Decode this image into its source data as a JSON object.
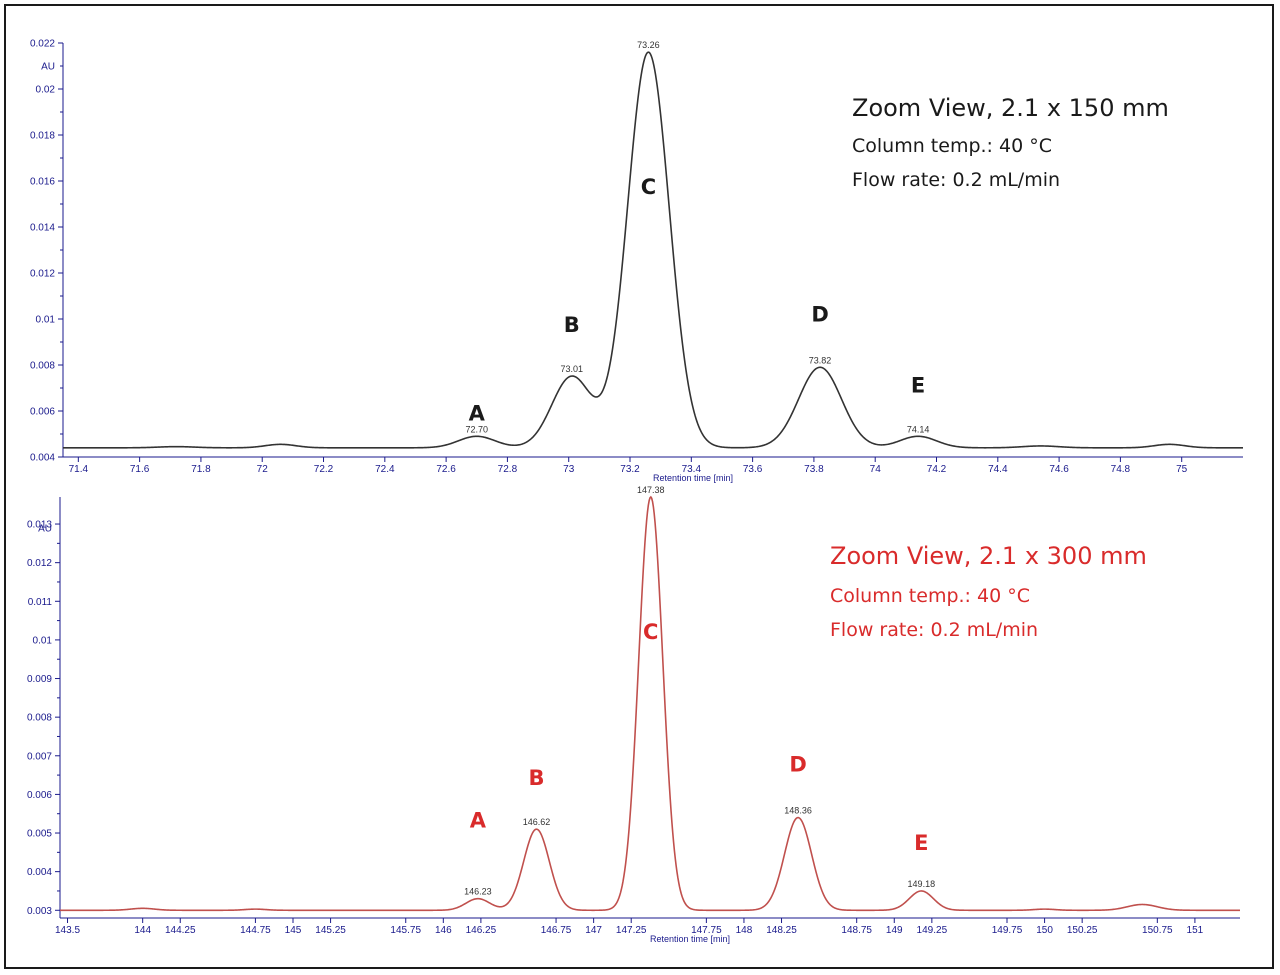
{
  "chart_data": [
    {
      "type": "line",
      "color": "#333333",
      "unit": "AU",
      "xlabel": "Retention time [min]",
      "xlim": [
        71.35,
        75.2
      ],
      "ylim": [
        0.004,
        0.022
      ],
      "baseline": 0.0044,
      "x_ticks": [
        71.4,
        71.6,
        71.8,
        72,
        72.2,
        72.4,
        72.6,
        72.8,
        73,
        73.2,
        73.4,
        73.6,
        73.8,
        74,
        74.2,
        74.4,
        74.6,
        74.8,
        75
      ],
      "x_tick_labels": [
        "71.4",
        "71.6",
        "71.8",
        "72",
        "72.2",
        "72.4",
        "72.6",
        "72.8",
        "73",
        "73.2",
        "73.4",
        "73.6",
        "73.8",
        "74",
        "74.2",
        "74.4",
        "74.6",
        "74.8",
        "75"
      ],
      "y_ticks": [
        0.004,
        0.006,
        0.008,
        0.01,
        0.012,
        0.014,
        0.016,
        0.018,
        0.02,
        0.022
      ],
      "y_tick_labels": [
        "0.004",
        "0.006",
        "0.008",
        "0.01",
        "0.012",
        "0.014",
        "0.016",
        "0.018",
        "0.02",
        "0.022"
      ],
      "peaks": [
        {
          "letter": "A",
          "rt": 72.7,
          "rt_label": "72.70",
          "height": 0.0049,
          "width": 0.06
        },
        {
          "letter": "B",
          "rt": 73.01,
          "rt_label": "73.01",
          "height": 0.0075,
          "width": 0.065
        },
        {
          "letter": "C",
          "rt": 73.26,
          "rt_label": "73.26",
          "height": 0.0216,
          "width": 0.068
        },
        {
          "letter": "D",
          "rt": 73.82,
          "rt_label": "73.82",
          "height": 0.0079,
          "width": 0.07
        },
        {
          "letter": "E",
          "rt": 74.14,
          "rt_label": "74.14",
          "height": 0.0049,
          "width": 0.06
        }
      ],
      "minor_bumps": [
        {
          "rt": 71.72,
          "height": 0.00445,
          "width": 0.06
        },
        {
          "rt": 72.06,
          "height": 0.00455,
          "width": 0.05
        },
        {
          "rt": 74.54,
          "height": 0.00448,
          "width": 0.06
        },
        {
          "rt": 74.96,
          "height": 0.00455,
          "width": 0.05
        }
      ],
      "annotation": {
        "title": "Zoom View, 2.1 x 150 mm",
        "line1": "Column temp.: 40 °C",
        "line2": "Flow rate: 0.2 mL/min",
        "color": "#1a1a1a"
      }
    },
    {
      "type": "line",
      "color": "#c0504d",
      "unit": "AU",
      "xlabel": "Retention time [min]",
      "xlim": [
        143.45,
        151.3
      ],
      "ylim": [
        0.0028,
        0.0137
      ],
      "baseline": 0.003,
      "x_ticks": [
        143.5,
        144,
        144.25,
        144.75,
        145,
        145.25,
        145.75,
        146,
        146.25,
        146.75,
        147,
        147.25,
        147.75,
        148,
        148.25,
        148.75,
        149,
        149.25,
        149.75,
        150,
        150.25,
        150.75,
        151
      ],
      "x_tick_labels": [
        "143.5",
        "144",
        "144.25",
        "144.75",
        "145",
        "145.25",
        "145.75",
        "146",
        "146.25",
        "146.75",
        "147",
        "147.25",
        "147.75",
        "148",
        "148.25",
        "148.75",
        "149",
        "149.25",
        "149.75",
        "150",
        "150.25",
        "150.75",
        "151"
      ],
      "y_ticks": [
        0.003,
        0.004,
        0.005,
        0.006,
        0.007,
        0.008,
        0.009,
        0.01,
        0.011,
        0.012,
        0.013
      ],
      "y_tick_labels": [
        "0.003",
        "0.004",
        "0.005",
        "0.006",
        "0.007",
        "0.008",
        "0.009",
        "0.01",
        "0.011",
        "0.012",
        "0.013"
      ],
      "peaks": [
        {
          "letter": "A",
          "rt": 146.23,
          "rt_label": "146.23",
          "height": 0.0033,
          "width": 0.08
        },
        {
          "letter": "B",
          "rt": 146.62,
          "rt_label": "146.62",
          "height": 0.0051,
          "width": 0.085
        },
        {
          "letter": "C",
          "rt": 147.38,
          "rt_label": "147.38",
          "height": 0.0137,
          "width": 0.08
        },
        {
          "letter": "D",
          "rt": 148.36,
          "rt_label": "148.36",
          "height": 0.0054,
          "width": 0.09
        },
        {
          "letter": "E",
          "rt": 149.18,
          "rt_label": "149.18",
          "height": 0.0035,
          "width": 0.08
        }
      ],
      "minor_bumps": [
        {
          "rt": 144.0,
          "height": 0.00305,
          "width": 0.08
        },
        {
          "rt": 144.75,
          "height": 0.00303,
          "width": 0.07
        },
        {
          "rt": 150.0,
          "height": 0.00303,
          "width": 0.07
        },
        {
          "rt": 150.65,
          "height": 0.00315,
          "width": 0.1
        }
      ],
      "annotation": {
        "title": "Zoom View, 2.1 x 300 mm",
        "line1": "Column temp.: 40 °C",
        "line2": "Flow rate: 0.2 mL/min",
        "color": "#d92b2b"
      }
    }
  ]
}
